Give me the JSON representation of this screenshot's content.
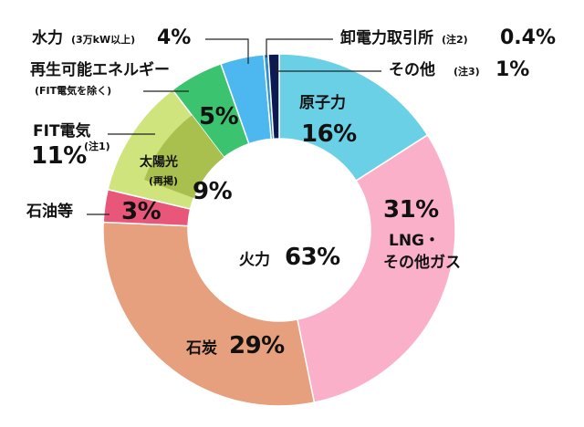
{
  "chart_data": {
    "type": "pie",
    "variant": "donut",
    "center_label": "火力",
    "center_value": "63%",
    "slices": [
      {
        "name": "原子力",
        "value": 16,
        "percent_label": "16%",
        "color": "#6ad0e6"
      },
      {
        "name": "LNG・その他ガス",
        "line1": "LNG・",
        "line2": "その他ガス",
        "value": 31,
        "percent_label": "31%",
        "color": "#fbb0c9"
      },
      {
        "name": "石炭",
        "value": 29,
        "percent_label": "29%",
        "color": "#e6a07e"
      },
      {
        "name": "石油等",
        "value": 3,
        "percent_label": "3%",
        "color": "#e8577a"
      },
      {
        "name": "FIT電気",
        "value": 11,
        "percent_label": "11%",
        "note": "(注1)",
        "color": "#cfe47d"
      },
      {
        "name": "太陽光",
        "sub": "(再掲)",
        "value": 9,
        "percent_label": "9%",
        "color": "#a9c04e",
        "nested": true
      },
      {
        "name": "再生可能エネルギー",
        "sub": "(FIT電気を除く)",
        "value": 5,
        "percent_label": "5%",
        "color": "#3cc36f"
      },
      {
        "name": "水力",
        "sub": "(3万kW以上)",
        "value": 4,
        "percent_label": "4%",
        "color": "#4db8f0"
      },
      {
        "name": "卸電力取引所",
        "note": "(注2)",
        "value": 0.4,
        "percent_label": "0.4%",
        "color": "#2f8fcf"
      },
      {
        "name": "その他",
        "note": "(注3)",
        "value": 1,
        "percent_label": "1%",
        "color": "#0d1a52"
      }
    ]
  }
}
